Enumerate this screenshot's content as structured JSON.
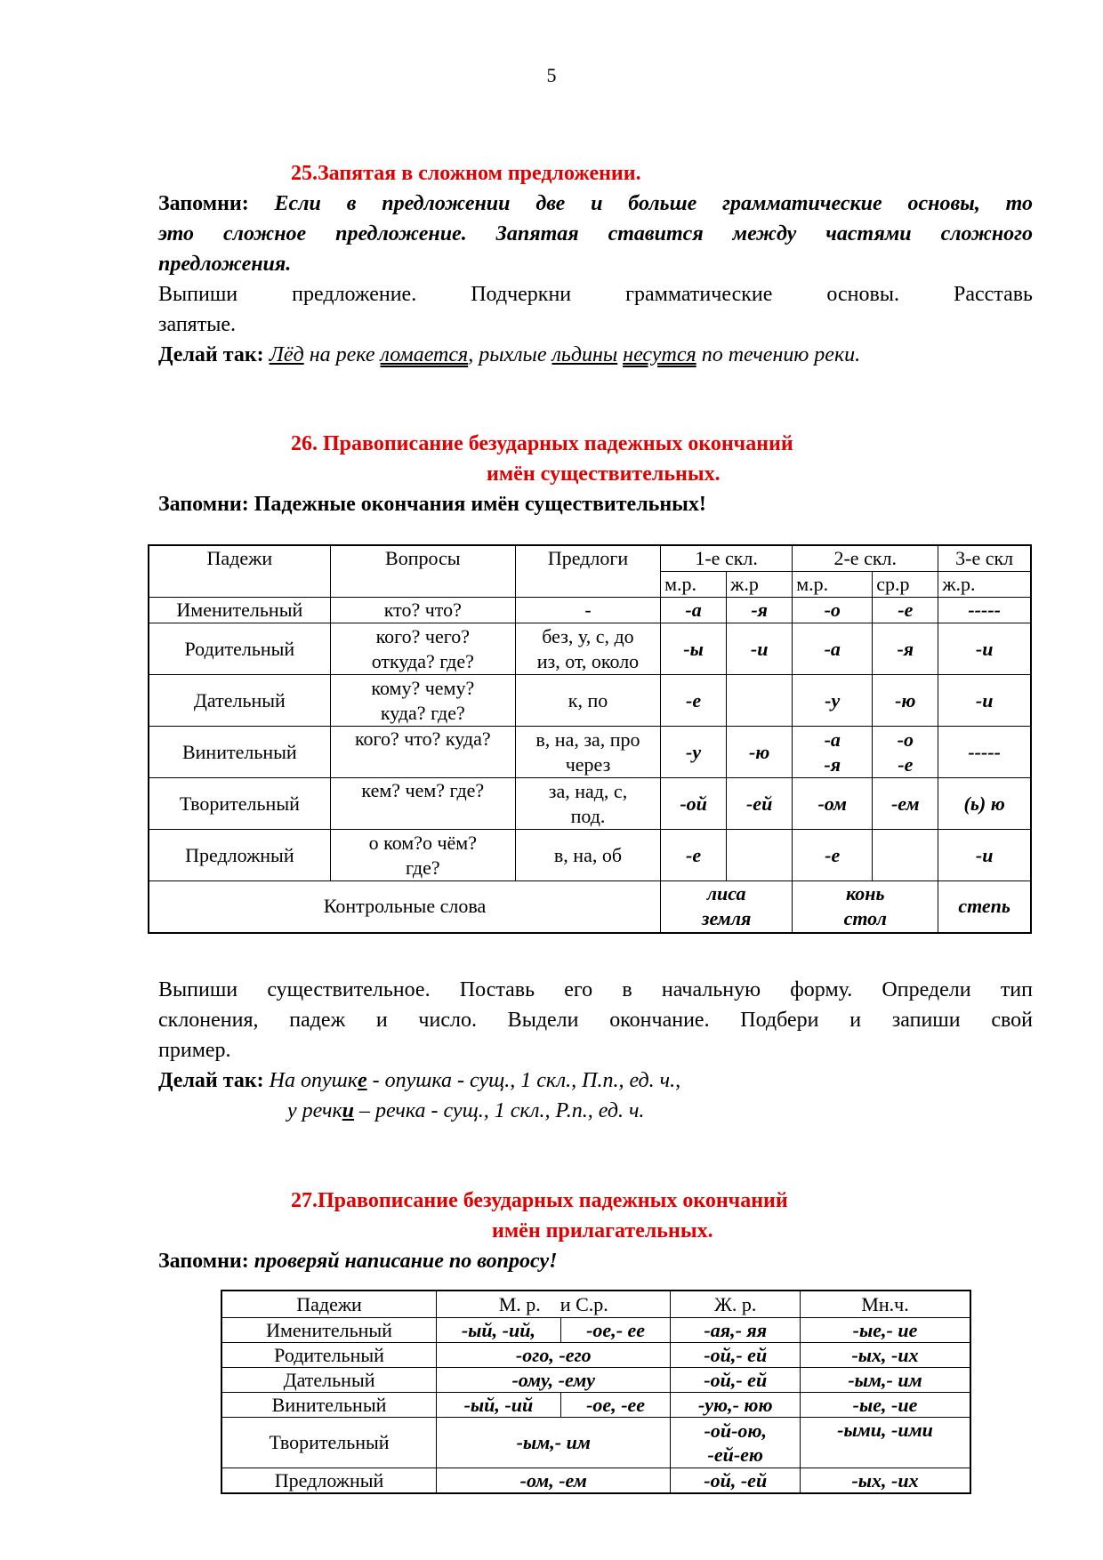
{
  "page_number": "5",
  "s25": {
    "title": "25.Запятая в сложном предложении.",
    "remember_label": "Запомни:",
    "rule_l1": "Если в предложении две и больше грамматические основы, то",
    "rule_l2": "это сложное предложение. Запятая ставится между частями сложного",
    "rule_l3": "предложения.",
    "task_l1": "Выпиши предложение. Подчеркни грамматические основы. Расставь",
    "task_l2": "запятые.",
    "example_label": "Делай так:",
    "ex": [
      "Лёд",
      " на реке ",
      "ломается",
      ", рыхлые ",
      "льдины",
      " ",
      "несутся",
      " по течению реки."
    ]
  },
  "s26": {
    "title_l1": "26. Правописание безударных падежных окончаний",
    "title_l2": "имён существительных.",
    "remember": "Запомни: Падежные окончания имён существительных!",
    "table": {
      "headers": [
        "Падежи",
        "Вопросы",
        "Предлоги",
        "1-е скл.",
        "2-е скл.",
        "3-е скл"
      ],
      "subheaders": [
        "м.р.",
        "ж.р",
        "м.р.",
        "ср.р",
        "ж.р."
      ],
      "rows": [
        {
          "case": "Именительный",
          "q": [
            "кто? что?"
          ],
          "p": [
            "-"
          ],
          "e": [
            [
              "-а"
            ],
            [
              "-я"
            ],
            [
              "-о"
            ],
            [
              "-е"
            ],
            [
              "-----"
            ]
          ]
        },
        {
          "case": "Родительный",
          "q": [
            "кого? чего?",
            "откуда? где?"
          ],
          "p": [
            "без, у, с, до",
            "из, от, около"
          ],
          "e": [
            [
              "-ы"
            ],
            [
              "-и"
            ],
            [
              "-а"
            ],
            [
              "-я"
            ],
            [
              "-и"
            ]
          ]
        },
        {
          "case": "Дательный",
          "q": [
            "кому? чему?",
            "куда? где?"
          ],
          "p": [
            "к, по"
          ],
          "e": [
            [
              "-е"
            ],
            [
              ""
            ],
            [
              "-у"
            ],
            [
              "-ю"
            ],
            [
              "-и"
            ]
          ]
        },
        {
          "case": "Винительный",
          "q": [
            "кого? что? куда?"
          ],
          "p": [
            "в, на, за, про",
            "через"
          ],
          "e": [
            [
              "-у"
            ],
            [
              "-ю"
            ],
            [
              "-а",
              "-я"
            ],
            [
              "-о",
              "-е"
            ],
            [
              "-----"
            ]
          ]
        },
        {
          "case": "Творительный",
          "q": [
            "кем? чем? где?"
          ],
          "p": [
            "за, над, с,",
            "под."
          ],
          "e": [
            [
              "-ой"
            ],
            [
              "-ей"
            ],
            [
              "-ом"
            ],
            [
              "-ем"
            ],
            [
              "(ь) ю"
            ]
          ]
        },
        {
          "case": "Предложный",
          "q": [
            "о ком?о чём?",
            "где?"
          ],
          "p": [
            "в, на, об"
          ],
          "e": [
            [
              "-е"
            ],
            [
              ""
            ],
            [
              "-е"
            ],
            [
              ""
            ],
            [
              "-и"
            ]
          ]
        }
      ],
      "control_label": "Контрольные слова",
      "control": [
        [
          "лиса",
          "земля"
        ],
        [
          "конь",
          "стол"
        ],
        [
          "степь"
        ]
      ]
    },
    "task_l1": "Выпиши существительное. Поставь его в начальную форму. Определи тип",
    "task_l2": "склонения, падеж и число. Выдели окончание. Подбери и запиши свой",
    "task_l3": "пример.",
    "example_label": "Делай так:",
    "ex1": [
      "На опушк",
      "е",
      " - опушка - сущ., 1 скл., П.п., ед. ч.,"
    ],
    "ex2": [
      "у речк",
      "и",
      " – речка - сущ., 1 скл., Р.п., ед. ч."
    ]
  },
  "s27": {
    "title_l1": "27.Правописание безударных падежных окончаний",
    "title_l2": "имён прилагательных.",
    "remember_label": "Запомни:",
    "remember_text": "проверяй написание по вопросу!",
    "table": {
      "headers": [
        "Падежи",
        "М. р.    и С.р.",
        "Ж. р.",
        "Мн.ч."
      ],
      "rows": [
        {
          "case": "Именительный",
          "m": [
            "-ый, -ий,",
            "-ое,- ее"
          ],
          "f": [
            "-ая,- яя"
          ],
          "pl": [
            "-ые,- ие"
          ]
        },
        {
          "case": "Родительный",
          "m": [
            "-ого, -его"
          ],
          "f": [
            "-ой,- ей"
          ],
          "pl": [
            "-ых, -их"
          ]
        },
        {
          "case": "Дательный",
          "m": [
            "-ому, -ему"
          ],
          "f": [
            "-ой,- ей"
          ],
          "pl": [
            "-ым,- им"
          ]
        },
        {
          "case": "Винительный",
          "m": [
            "-ый, -ий",
            "-ое, -ее"
          ],
          "f": [
            "-ую,- юю"
          ],
          "pl": [
            "-ые, -ие"
          ]
        },
        {
          "case": "Творительный",
          "m": [
            "-ым,- им"
          ],
          "f": [
            "-ой-ою,",
            "-ей-ею"
          ],
          "pl": [
            "-ыми, -ими"
          ]
        },
        {
          "case": "Предложный",
          "m": [
            "-ом, -ем"
          ],
          "f": [
            "-ой, -ей"
          ],
          "pl": [
            "-ых, -их"
          ]
        }
      ]
    }
  },
  "colors": {
    "heading": "#e00000",
    "text": "#000000"
  }
}
